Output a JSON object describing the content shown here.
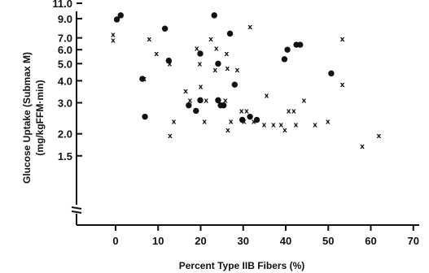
{
  "chart_data": {
    "type": "scatter",
    "xlabel": "Percent Type IIB Fibers (%)",
    "ylabel_line1": "Glucose Uptake (Submax M)",
    "ylabel_line2": "(mg/kgFFM·min)",
    "xlim": [
      -10,
      70
    ],
    "ylim": [
      1.5,
      11.0
    ],
    "y_scale": "log",
    "x_ticks": [
      0,
      10,
      20,
      30,
      40,
      50,
      60,
      70
    ],
    "y_ticks": [
      1.5,
      2.0,
      3.0,
      4.0,
      5.0,
      6.0,
      7.0,
      9.0,
      11.0
    ],
    "y_tick_labels": [
      "1.5",
      "2.0",
      "3.0",
      "4.0",
      "5.0",
      "6.0",
      "7.0",
      "9.0",
      "11.0"
    ],
    "axis_break": true,
    "grid": false,
    "series": [
      {
        "marker": "circle",
        "points": [
          [
            0.3,
            8.9
          ],
          [
            1.2,
            9.4
          ],
          [
            6.3,
            4.1
          ],
          [
            6.9,
            2.5
          ],
          [
            11.6,
            7.9
          ],
          [
            12.5,
            5.2
          ],
          [
            17.2,
            2.9
          ],
          [
            18.9,
            2.7
          ],
          [
            19.9,
            3.1
          ],
          [
            19.9,
            5.7
          ],
          [
            23.2,
            9.4
          ],
          [
            24.1,
            3.1
          ],
          [
            24.1,
            5.0
          ],
          [
            24.7,
            2.9
          ],
          [
            25.4,
            2.9
          ],
          [
            26.9,
            7.4
          ],
          [
            28.0,
            3.8
          ],
          [
            29.8,
            2.4
          ],
          [
            31.6,
            2.5
          ],
          [
            33.2,
            2.4
          ],
          [
            39.7,
            5.3
          ],
          [
            40.4,
            6.0
          ],
          [
            42.5,
            6.4
          ],
          [
            43.4,
            6.4
          ],
          [
            50.7,
            4.4
          ]
        ]
      },
      {
        "marker": "x",
        "points": [
          [
            -0.6,
            7.3
          ],
          [
            -0.6,
            6.8
          ],
          [
            6.7,
            4.1
          ],
          [
            7.9,
            6.9
          ],
          [
            9.6,
            5.7
          ],
          [
            12.7,
            5.0
          ],
          [
            12.8,
            1.95
          ],
          [
            13.7,
            2.35
          ],
          [
            16.5,
            3.5
          ],
          [
            17.5,
            3.1
          ],
          [
            19.1,
            6.1
          ],
          [
            19.8,
            5.0
          ],
          [
            20.0,
            3.7
          ],
          [
            20.9,
            2.35
          ],
          [
            21.3,
            3.1
          ],
          [
            22.4,
            6.9
          ],
          [
            23.4,
            4.6
          ],
          [
            23.7,
            6.1
          ],
          [
            25.8,
            3.1
          ],
          [
            26.1,
            5.7
          ],
          [
            26.3,
            4.7
          ],
          [
            26.4,
            2.1
          ],
          [
            27.1,
            2.35
          ],
          [
            28.6,
            4.6
          ],
          [
            29.6,
            2.7
          ],
          [
            30.2,
            2.35
          ],
          [
            30.8,
            2.7
          ],
          [
            31.6,
            8.1
          ],
          [
            32.5,
            2.35
          ],
          [
            34.9,
            2.25
          ],
          [
            35.5,
            3.3
          ],
          [
            37.1,
            2.25
          ],
          [
            38.9,
            2.25
          ],
          [
            39.8,
            2.1
          ],
          [
            40.7,
            2.7
          ],
          [
            41.9,
            2.7
          ],
          [
            42.4,
            2.25
          ],
          [
            44.3,
            3.1
          ],
          [
            46.9,
            2.25
          ],
          [
            49.9,
            2.35
          ],
          [
            53.3,
            3.8
          ],
          [
            53.3,
            6.9
          ],
          [
            58.0,
            1.7
          ],
          [
            61.9,
            1.95
          ]
        ]
      }
    ]
  }
}
